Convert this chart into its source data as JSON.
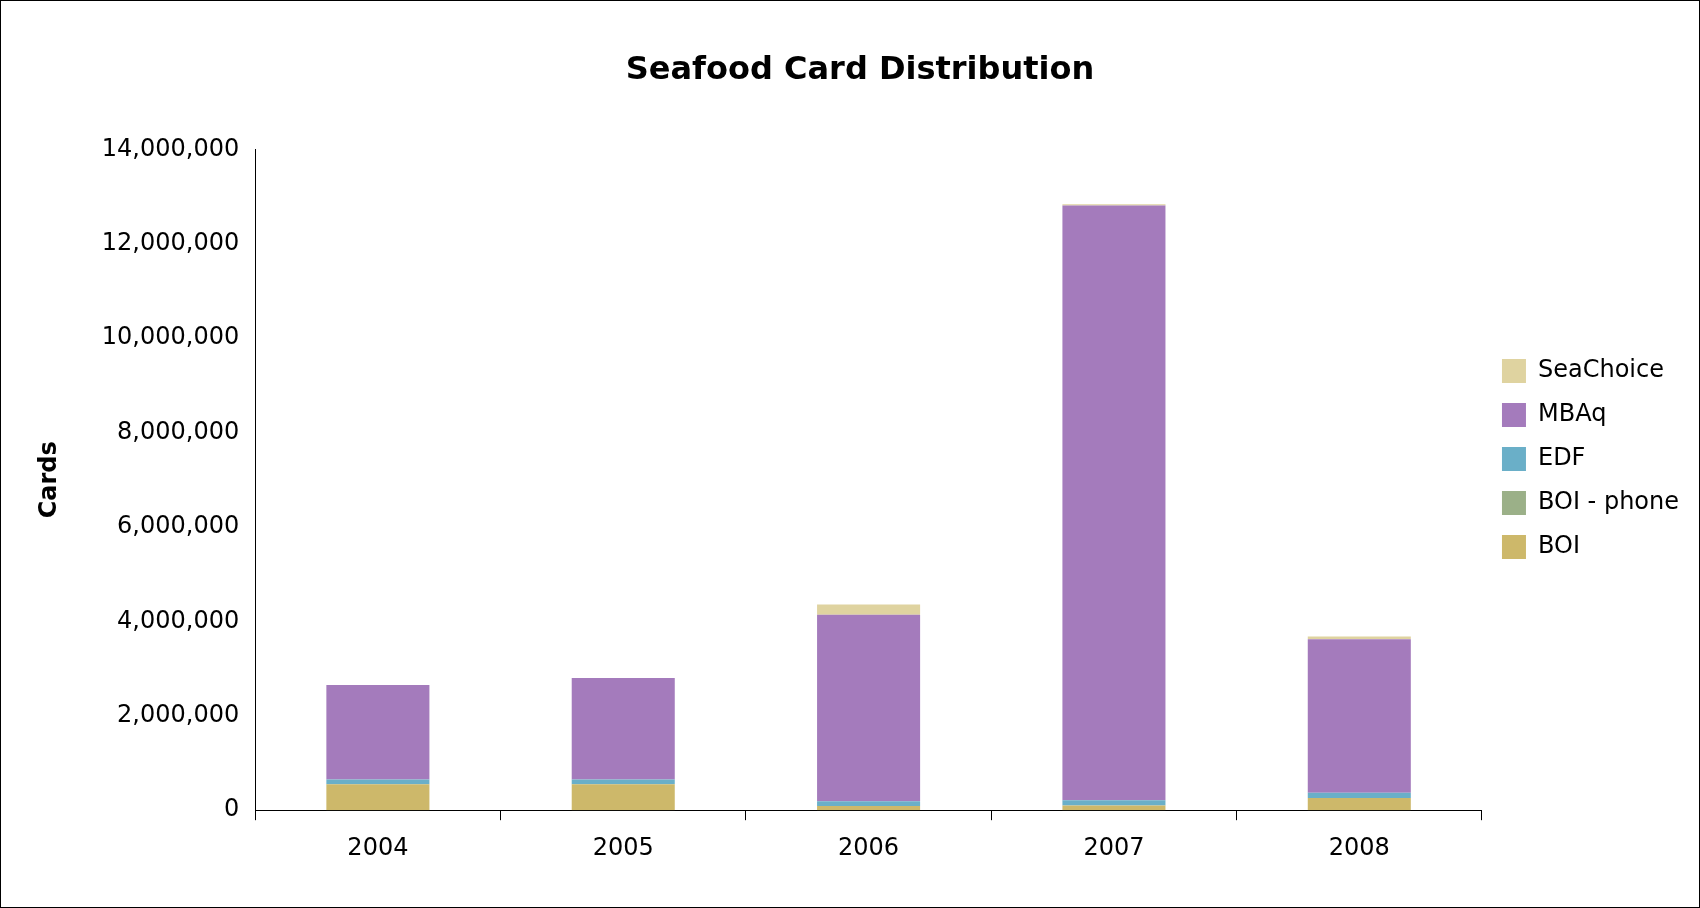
{
  "chart_data": {
    "type": "bar",
    "title": "Seafood Card Distribution",
    "ylabel": "Cards",
    "categories": [
      "2004",
      "2005",
      "2006",
      "2007",
      "2008"
    ],
    "stacked": true,
    "series": [
      {
        "name": "BOI",
        "color": "#cdb86a",
        "values": [
          550000,
          550000,
          90000,
          100000,
          260000
        ]
      },
      {
        "name": "BOI - phone",
        "color": "#9bb088",
        "values": [
          0,
          0,
          0,
          0,
          0
        ]
      },
      {
        "name": "EDF",
        "color": "#6aafc8",
        "values": [
          100000,
          100000,
          100000,
          110000,
          110000
        ]
      },
      {
        "name": "MBAq",
        "color": "#a47bbc",
        "values": [
          2000000,
          2150000,
          3950000,
          12600000,
          3250000
        ]
      },
      {
        "name": "SeaChoice",
        "color": "#dfd3a0",
        "values": [
          0,
          0,
          220000,
          30000,
          60000
        ]
      }
    ],
    "ylim": [
      0,
      14000000
    ],
    "yticks": [
      0,
      {
        "value": 2000000,
        "label": "2,000,000"
      },
      {
        "value": 4000000,
        "label": "4,000,000"
      },
      {
        "value": 6000000,
        "label": "6,000,000"
      },
      {
        "value": 8000000,
        "label": "8,000,000"
      },
      {
        "value": 10000000,
        "label": "10,000,000"
      },
      {
        "value": 12000000,
        "label": "12,000,000"
      },
      {
        "value": 14000000,
        "label": "14,000,000"
      }
    ],
    "grid": false,
    "legend": "right"
  }
}
